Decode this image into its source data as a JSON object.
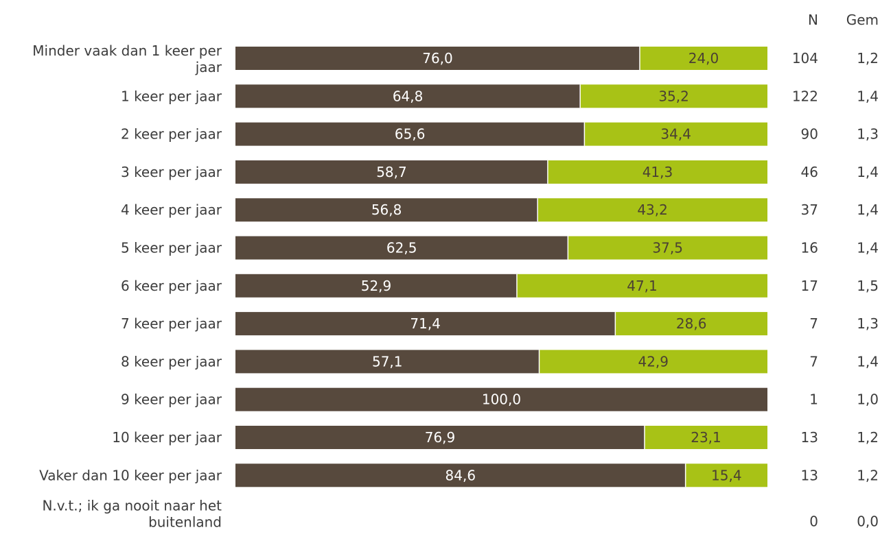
{
  "chart_data": {
    "type": "bar",
    "orientation": "horizontal",
    "stacked": true,
    "percent": true,
    "colors": {
      "series1": "#57493d",
      "series2": "#a8c216"
    },
    "columns": {
      "n_header": "N",
      "gem_header": "Gem"
    },
    "rows": [
      {
        "label": [
          "Minder vaak dan 1 keer per",
          "jaar"
        ],
        "values": [
          76.0,
          24.0
        ],
        "labels": [
          "76,0",
          "24,0"
        ],
        "n": "104",
        "gem": "1,2"
      },
      {
        "label": [
          "1 keer per jaar"
        ],
        "values": [
          64.8,
          35.2
        ],
        "labels": [
          "64,8",
          "35,2"
        ],
        "n": "122",
        "gem": "1,4"
      },
      {
        "label": [
          "2 keer per jaar"
        ],
        "values": [
          65.6,
          34.4
        ],
        "labels": [
          "65,6",
          "34,4"
        ],
        "n": "90",
        "gem": "1,3"
      },
      {
        "label": [
          "3 keer per jaar"
        ],
        "values": [
          58.7,
          41.3
        ],
        "labels": [
          "58,7",
          "41,3"
        ],
        "n": "46",
        "gem": "1,4"
      },
      {
        "label": [
          "4 keer per jaar"
        ],
        "values": [
          56.8,
          43.2
        ],
        "labels": [
          "56,8",
          "43,2"
        ],
        "n": "37",
        "gem": "1,4"
      },
      {
        "label": [
          "5 keer per jaar"
        ],
        "values": [
          62.5,
          37.5
        ],
        "labels": [
          "62,5",
          "37,5"
        ],
        "n": "16",
        "gem": "1,4"
      },
      {
        "label": [
          "6 keer per jaar"
        ],
        "values": [
          52.9,
          47.1
        ],
        "labels": [
          "52,9",
          "47,1"
        ],
        "n": "17",
        "gem": "1,5"
      },
      {
        "label": [
          "7 keer per jaar"
        ],
        "values": [
          71.4,
          28.6
        ],
        "labels": [
          "71,4",
          "28,6"
        ],
        "n": "7",
        "gem": "1,3"
      },
      {
        "label": [
          "8 keer per jaar"
        ],
        "values": [
          57.1,
          42.9
        ],
        "labels": [
          "57,1",
          "42,9"
        ],
        "n": "7",
        "gem": "1,4"
      },
      {
        "label": [
          "9 keer per jaar"
        ],
        "values": [
          100.0,
          0
        ],
        "labels": [
          "100,0",
          ""
        ],
        "n": "1",
        "gem": "1,0"
      },
      {
        "label": [
          "10 keer per jaar"
        ],
        "values": [
          76.9,
          23.1
        ],
        "labels": [
          "76,9",
          "23,1"
        ],
        "n": "13",
        "gem": "1,2"
      },
      {
        "label": [
          "Vaker dan 10 keer per jaar"
        ],
        "values": [
          84.6,
          15.4
        ],
        "labels": [
          "84,6",
          "15,4"
        ],
        "n": "13",
        "gem": "1,2"
      },
      {
        "label": [
          "N.v.t.; ik ga nooit naar het",
          "buitenland"
        ],
        "values": [
          0,
          0
        ],
        "labels": [
          "",
          ""
        ],
        "n": "0",
        "gem": "0,0"
      }
    ]
  }
}
